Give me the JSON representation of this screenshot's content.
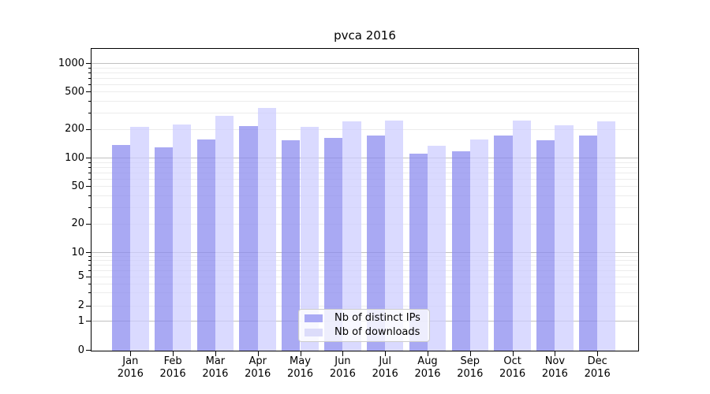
{
  "chart_data": {
    "type": "bar",
    "title": "pvca 2016",
    "categories": [
      "Jan 2016",
      "Feb 2016",
      "Mar 2016",
      "Apr 2016",
      "May 2016",
      "Jun 2016",
      "Jul 2016",
      "Aug 2016",
      "Sep 2016",
      "Oct 2016",
      "Nov 2016",
      "Dec 2016"
    ],
    "series": [
      {
        "name": "Nb of distinct IPs",
        "values": [
          135,
          128,
          157,
          215,
          152,
          163,
          170,
          110,
          117,
          170,
          153,
          170
        ],
        "color": "rgba(136,136,238,0.72)",
        "swatch": "#aaaaf5"
      },
      {
        "name": "Nb of downloads",
        "values": [
          210,
          225,
          278,
          335,
          211,
          242,
          248,
          133,
          155,
          248,
          220,
          240
        ],
        "color": "rgba(204,204,255,0.72)",
        "swatch": "#dcdcfa"
      }
    ],
    "yscale": "symlog",
    "ylim": [
      0,
      1440
    ],
    "ytick_labels": [
      "0",
      "1",
      "2",
      "5",
      "10",
      "20",
      "50",
      "100",
      "200",
      "500",
      "1000"
    ],
    "xlabel": "",
    "ylabel": "",
    "grid": true,
    "legend_position": "lower center"
  }
}
